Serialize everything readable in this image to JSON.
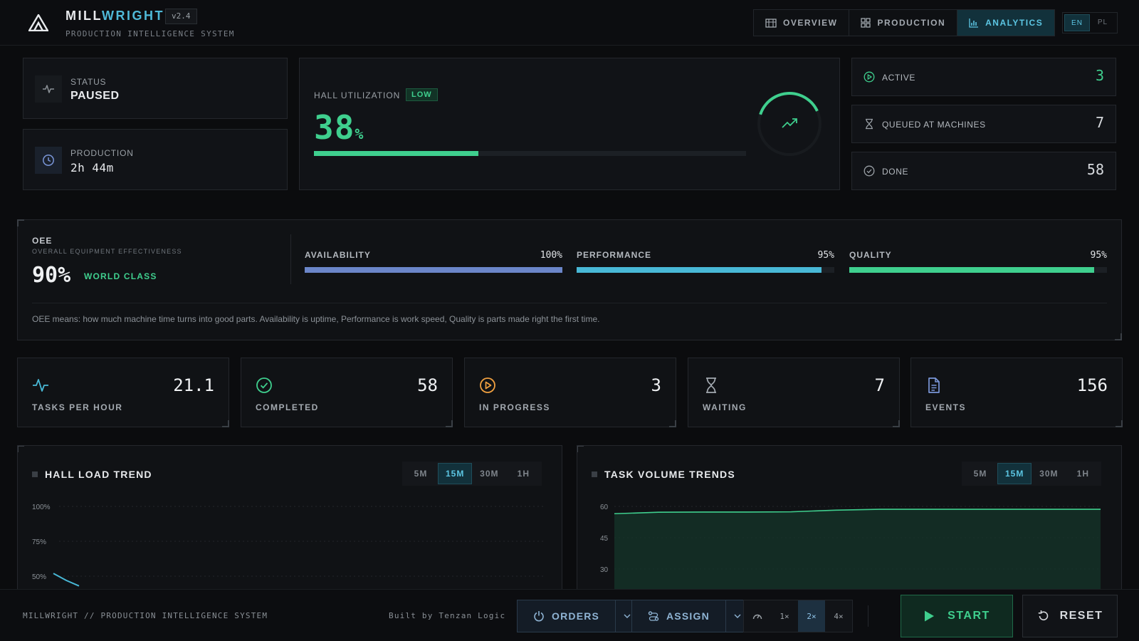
{
  "header": {
    "brand_part1": "MILL",
    "brand_part2": "WRIGHT",
    "version": "v2.4",
    "subtitle": "PRODUCTION INTELLIGENCE SYSTEM",
    "nav": [
      {
        "label": "OVERVIEW",
        "icon": "building-icon",
        "active": false
      },
      {
        "label": "PRODUCTION",
        "icon": "grid-icon",
        "active": false
      },
      {
        "label": "ANALYTICS",
        "icon": "bar-chart-icon",
        "active": true
      }
    ],
    "languages": [
      {
        "label": "EN",
        "active": true
      },
      {
        "label": "PL",
        "active": false
      }
    ]
  },
  "status": {
    "label": "STATUS",
    "value": "PAUSED",
    "icon": "pulse-icon"
  },
  "production": {
    "label": "PRODUCTION",
    "value": "2h 44m",
    "icon": "clock-icon"
  },
  "utilization": {
    "label": "HALL UTILIZATION",
    "badge": "LOW",
    "value": "38",
    "unit": "%",
    "fraction": 0.38,
    "icon": "trend-up-icon"
  },
  "counters": [
    {
      "label": "ACTIVE",
      "value": "3",
      "icon": "play-circle-icon",
      "color": "#3fcf8e"
    },
    {
      "label": "QUEUED AT MACHINES",
      "value": "7",
      "icon": "hourglass-icon",
      "color": "#d6d9dd"
    },
    {
      "label": "DONE",
      "value": "58",
      "icon": "check-circle-icon",
      "color": "#d6d9dd"
    }
  ],
  "oee": {
    "title": "OEE",
    "subtitle": "OVERALL EQUIPMENT EFFECTIVENESS",
    "value": "90%",
    "class": "WORLD CLASS",
    "metrics": [
      {
        "label": "AVAILABILITY",
        "value": "100%",
        "fraction": 1.0,
        "color": "#6b86c9"
      },
      {
        "label": "PERFORMANCE",
        "value": "95%",
        "fraction": 0.95,
        "color": "#48b8d6"
      },
      {
        "label": "QUALITY",
        "value": "95%",
        "fraction": 0.95,
        "color": "#3fcf8e"
      }
    ],
    "note": "OEE means: how much machine time turns into good parts. Availability is uptime, Performance is work speed, Quality is parts made right the first time."
  },
  "kpis": [
    {
      "label": "TASKS PER HOUR",
      "value": "21.1",
      "icon": "pulse-icon",
      "color": "#48b8d6"
    },
    {
      "label": "COMPLETED",
      "value": "58",
      "icon": "check-circle-icon",
      "color": "#3fcf8e"
    },
    {
      "label": "IN PROGRESS",
      "value": "3",
      "icon": "play-circle-icon",
      "color": "#f0a040"
    },
    {
      "label": "WAITING",
      "value": "7",
      "icon": "hourglass-icon",
      "color": "#a3a9b0"
    },
    {
      "label": "EVENTS",
      "value": "156",
      "icon": "document-icon",
      "color": "#7a96d8"
    }
  ],
  "charts": {
    "hall_load": {
      "title": "HALL LOAD TREND",
      "ranges": [
        "5M",
        "15M",
        "30M",
        "1H"
      ],
      "active_range": "15M"
    },
    "task_volume": {
      "title": "TASK VOLUME TRENDS",
      "ranges": [
        "5M",
        "15M",
        "30M",
        "1H"
      ],
      "active_range": "15M"
    }
  },
  "chart_data": [
    {
      "type": "line",
      "title": "HALL LOAD TREND",
      "y_tick_labels": [
        "100%",
        "75%",
        "50%"
      ],
      "ylim": [
        0,
        100
      ],
      "grid": true,
      "series": [
        {
          "values": [
            52,
            47,
            43
          ]
        }
      ],
      "color": "#48b8d6"
    },
    {
      "type": "area",
      "title": "TASK VOLUME TRENDS",
      "y_ticks": [
        60,
        45,
        30
      ],
      "ylim": [
        15,
        60
      ],
      "grid": true,
      "series": [
        {
          "values": [
            56.5,
            57.2,
            57.3,
            57.3,
            57.4,
            58.2,
            58.6,
            58.6,
            58.6,
            58.6,
            58.6,
            58.6
          ]
        }
      ],
      "color": "#3fcf8e"
    }
  ],
  "footer": {
    "left": "MILLWRIGHT // PRODUCTION INTELLIGENCE SYSTEM",
    "built": "Built by Tenzan Logic",
    "orders_label": "ORDERS",
    "assign_label": "ASSIGN",
    "speeds": [
      {
        "label": "1×",
        "active": false
      },
      {
        "label": "2×",
        "active": true
      },
      {
        "label": "4×",
        "active": false
      }
    ],
    "start_label": "START",
    "reset_label": "RESET"
  }
}
